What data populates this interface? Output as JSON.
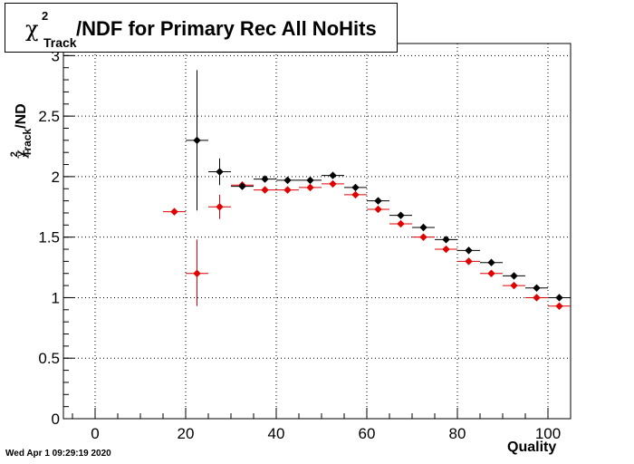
{
  "chart_data": {
    "type": "scatter",
    "title": {
      "chi": "χ",
      "sup": "2",
      "sub": "Track",
      "rest": "/NDF for Primary Rec All NoHits"
    },
    "ylabel": {
      "chi": "χ",
      "sup": "2",
      "sub": "Track",
      "rest": "/ND"
    },
    "xlabel": "Quality",
    "xlim": [
      -7,
      105
    ],
    "ylim": [
      0,
      3.1
    ],
    "x_ticks": [
      "0",
      "20",
      "40",
      "60",
      "80",
      "100"
    ],
    "x_tick_values": [
      0,
      20,
      40,
      60,
      80,
      100
    ],
    "y_ticks": [
      "0",
      "0.5",
      "1",
      "1.5",
      "2",
      "2.5",
      "3"
    ],
    "y_tick_values": [
      0,
      0.5,
      1,
      1.5,
      2,
      2.5,
      3
    ],
    "grid": true,
    "series": [
      {
        "color": "#000000",
        "points": [
          {
            "x": 22.5,
            "y": 2.3,
            "ylo": 1.72,
            "yhi": 2.88
          },
          {
            "x": 27.5,
            "y": 2.04,
            "ylo": 1.93,
            "yhi": 2.15
          },
          {
            "x": 32.5,
            "y": 1.92,
            "ylo": 1.9,
            "yhi": 1.94
          },
          {
            "x": 37.5,
            "y": 1.98,
            "ylo": 1.97,
            "yhi": 1.99
          },
          {
            "x": 42.5,
            "y": 1.97,
            "ylo": 1.96,
            "yhi": 1.98
          },
          {
            "x": 47.5,
            "y": 1.97,
            "ylo": 1.96,
            "yhi": 1.98
          },
          {
            "x": 52.5,
            "y": 2.01,
            "ylo": 2.0,
            "yhi": 2.02
          },
          {
            "x": 57.5,
            "y": 1.91,
            "ylo": 1.9,
            "yhi": 1.92
          },
          {
            "x": 62.5,
            "y": 1.8,
            "ylo": 1.79,
            "yhi": 1.81
          },
          {
            "x": 67.5,
            "y": 1.68,
            "ylo": 1.67,
            "yhi": 1.69
          },
          {
            "x": 72.5,
            "y": 1.58,
            "ylo": 1.57,
            "yhi": 1.59
          },
          {
            "x": 77.5,
            "y": 1.48,
            "ylo": 1.47,
            "yhi": 1.49
          },
          {
            "x": 82.5,
            "y": 1.39,
            "ylo": 1.38,
            "yhi": 1.4
          },
          {
            "x": 87.5,
            "y": 1.29,
            "ylo": 1.28,
            "yhi": 1.3
          },
          {
            "x": 92.5,
            "y": 1.18,
            "ylo": 1.17,
            "yhi": 1.19
          },
          {
            "x": 97.5,
            "y": 1.08,
            "ylo": 1.07,
            "yhi": 1.09
          },
          {
            "x": 102.5,
            "y": 1.0,
            "ylo": 0.99,
            "yhi": 1.01
          }
        ]
      },
      {
        "color": "#e00000",
        "points": [
          {
            "x": 17.5,
            "y": 1.71,
            "ylo": 1.71,
            "yhi": 1.71
          },
          {
            "x": 22.5,
            "y": 1.2,
            "ylo": 0.93,
            "yhi": 1.48
          },
          {
            "x": 27.5,
            "y": 1.75,
            "ylo": 1.65,
            "yhi": 1.85
          },
          {
            "x": 32.5,
            "y": 1.93,
            "ylo": 1.91,
            "yhi": 1.95
          },
          {
            "x": 37.5,
            "y": 1.89,
            "ylo": 1.88,
            "yhi": 1.9
          },
          {
            "x": 42.5,
            "y": 1.89,
            "ylo": 1.88,
            "yhi": 1.9
          },
          {
            "x": 47.5,
            "y": 1.91,
            "ylo": 1.9,
            "yhi": 1.92
          },
          {
            "x": 52.5,
            "y": 1.94,
            "ylo": 1.93,
            "yhi": 1.95
          },
          {
            "x": 57.5,
            "y": 1.85,
            "ylo": 1.84,
            "yhi": 1.86
          },
          {
            "x": 62.5,
            "y": 1.73,
            "ylo": 1.72,
            "yhi": 1.74
          },
          {
            "x": 67.5,
            "y": 1.61,
            "ylo": 1.6,
            "yhi": 1.62
          },
          {
            "x": 72.5,
            "y": 1.5,
            "ylo": 1.49,
            "yhi": 1.51
          },
          {
            "x": 77.5,
            "y": 1.4,
            "ylo": 1.39,
            "yhi": 1.41
          },
          {
            "x": 82.5,
            "y": 1.3,
            "ylo": 1.29,
            "yhi": 1.31
          },
          {
            "x": 87.5,
            "y": 1.2,
            "ylo": 1.19,
            "yhi": 1.21
          },
          {
            "x": 92.5,
            "y": 1.1,
            "ylo": 1.09,
            "yhi": 1.11
          },
          {
            "x": 97.5,
            "y": 1.0,
            "ylo": 0.99,
            "yhi": 1.01
          },
          {
            "x": 102.5,
            "y": 0.93,
            "ylo": 0.92,
            "yhi": 0.94
          }
        ]
      }
    ]
  },
  "footer": {
    "timestamp": "Wed Apr  1 09:29:19 2020"
  }
}
